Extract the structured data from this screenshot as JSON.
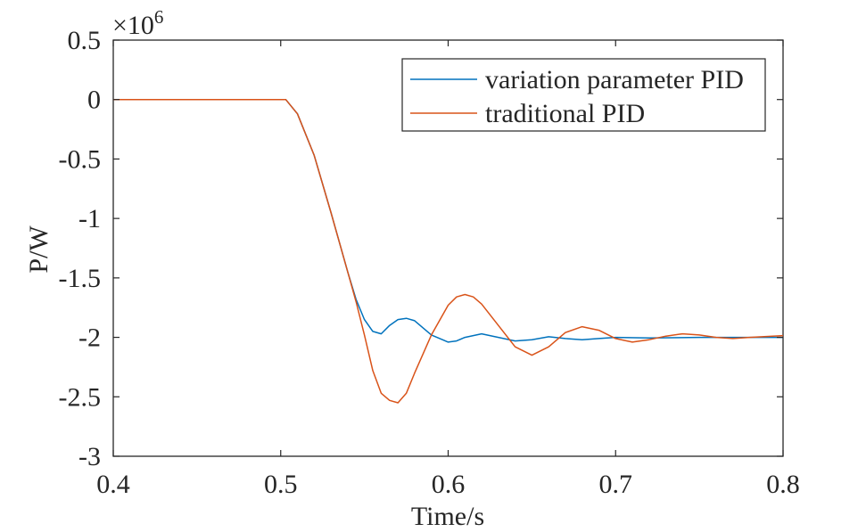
{
  "chart_data": {
    "type": "line",
    "xlabel": "Time/s",
    "ylabel": "P/W",
    "exponent_label": "×10",
    "exponent_power": "6",
    "xlim": [
      0.4,
      0.8
    ],
    "ylim": [
      -3,
      0.5
    ],
    "xticks": [
      0.4,
      0.5,
      0.6,
      0.7,
      0.8
    ],
    "xtick_labels": [
      "0.4",
      "0.5",
      "0.6",
      "0.7",
      "0.8"
    ],
    "yticks": [
      0.5,
      0,
      -0.5,
      -1,
      -1.5,
      -2,
      -2.5,
      -3
    ],
    "ytick_labels": [
      "0.5",
      "0",
      "-0.5",
      "-1",
      "-1.5",
      "-2",
      "-2.5",
      "-3"
    ],
    "grid": false,
    "legend_position": "top-right",
    "series": [
      {
        "name": "variation parameter PID",
        "color": "#0072BD",
        "x": [
          0.4,
          0.5,
          0.503,
          0.51,
          0.52,
          0.53,
          0.54,
          0.545,
          0.55,
          0.555,
          0.56,
          0.565,
          0.57,
          0.575,
          0.58,
          0.585,
          0.59,
          0.6,
          0.605,
          0.61,
          0.62,
          0.63,
          0.64,
          0.65,
          0.66,
          0.67,
          0.68,
          0.69,
          0.7,
          0.72,
          0.75,
          0.8
        ],
        "y": [
          0,
          0,
          0,
          -0.12,
          -0.47,
          -0.95,
          -1.45,
          -1.68,
          -1.85,
          -1.95,
          -1.97,
          -1.9,
          -1.85,
          -1.84,
          -1.86,
          -1.92,
          -1.98,
          -2.04,
          -2.03,
          -2.0,
          -1.97,
          -2.0,
          -2.03,
          -2.02,
          -1.995,
          -2.01,
          -2.02,
          -2.01,
          -2.0,
          -2.005,
          -2.0,
          -2.0
        ]
      },
      {
        "name": "traditional PID",
        "color": "#D95319",
        "x": [
          0.4,
          0.5,
          0.503,
          0.51,
          0.52,
          0.53,
          0.54,
          0.545,
          0.55,
          0.555,
          0.56,
          0.565,
          0.57,
          0.575,
          0.58,
          0.59,
          0.6,
          0.605,
          0.61,
          0.615,
          0.62,
          0.63,
          0.64,
          0.65,
          0.66,
          0.67,
          0.68,
          0.69,
          0.7,
          0.71,
          0.72,
          0.73,
          0.74,
          0.75,
          0.76,
          0.77,
          0.78,
          0.8
        ],
        "y": [
          0,
          0,
          0,
          -0.12,
          -0.47,
          -0.95,
          -1.45,
          -1.7,
          -1.98,
          -2.28,
          -2.47,
          -2.53,
          -2.55,
          -2.47,
          -2.3,
          -1.98,
          -1.73,
          -1.66,
          -1.64,
          -1.66,
          -1.72,
          -1.9,
          -2.08,
          -2.15,
          -2.08,
          -1.96,
          -1.91,
          -1.94,
          -2.01,
          -2.04,
          -2.02,
          -1.99,
          -1.97,
          -1.98,
          -2.0,
          -2.01,
          -2.0,
          -1.985
        ]
      }
    ]
  }
}
